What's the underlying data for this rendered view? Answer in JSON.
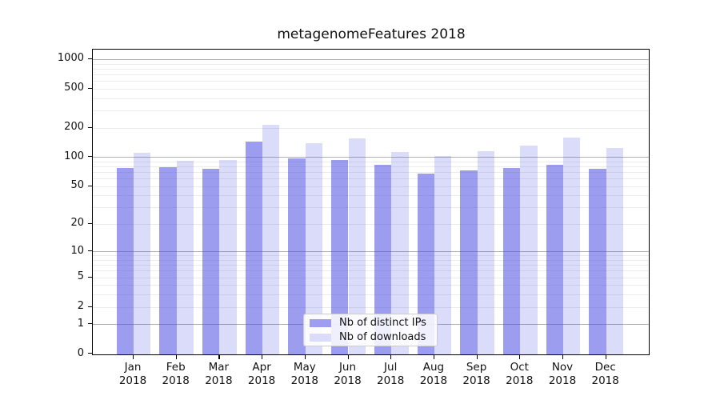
{
  "title": "metagenomeFeatures 2018",
  "colors": {
    "bar_ips": "rgba(77,77,228,0.55)",
    "bar_downloads": "rgba(77,77,228,0.20)",
    "bar_ips_solid": "#9d9df1",
    "bar_downloads_solid": "#dbdbfa",
    "grid_major": "#b0b0b0",
    "grid_minor": "#ebebeb",
    "axis": "#000000",
    "text": "#111111"
  },
  "chart_data": {
    "type": "bar",
    "title": "metagenomeFeatures 2018",
    "scale": "log1p",
    "categories": [
      "Jan",
      "Feb",
      "Mar",
      "Apr",
      "May",
      "Jun",
      "Jul",
      "Aug",
      "Sep",
      "Oct",
      "Nov",
      "Dec"
    ],
    "year": "2018",
    "series": [
      {
        "name": "Nb of distinct IPs",
        "values": [
          75,
          76,
          73,
          141,
          94,
          91,
          81,
          66,
          70,
          75,
          81,
          73
        ]
      },
      {
        "name": "Nb of downloads",
        "values": [
          107,
          88,
          90,
          207,
          135,
          150,
          110,
          100,
          112,
          128,
          155,
          119
        ]
      }
    ],
    "ytick_values": [
      0,
      1,
      2,
      5,
      10,
      20,
      50,
      100,
      200,
      500,
      1000
    ],
    "ytick_labels": [
      "0",
      "1",
      "2",
      "5",
      "10",
      "20",
      "50",
      "100",
      "200",
      "500",
      "1000"
    ],
    "ylim": [
      0,
      1250
    ],
    "xlabel": "",
    "ylabel": "",
    "grid": "horizontal, log minor + major decade lines",
    "legend_position": "lower center"
  },
  "legend": {
    "items": [
      {
        "label": "Nb of distinct IPs"
      },
      {
        "label": "Nb of downloads"
      }
    ]
  }
}
